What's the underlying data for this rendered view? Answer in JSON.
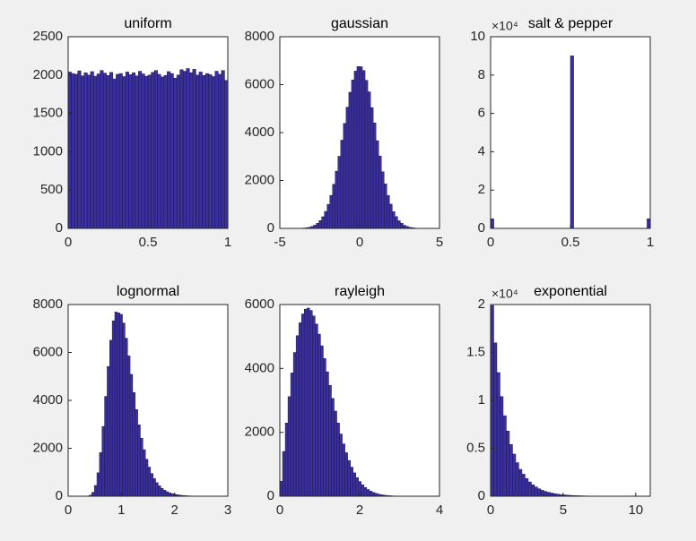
{
  "chart_data": [
    {
      "type": "histogram",
      "title": "uniform",
      "color": "#3b2fa0",
      "edge_color": "#1a1a40",
      "bins": [
        0,
        0.02,
        0.04,
        0.06,
        0.08,
        0.1,
        0.12,
        0.14,
        0.16,
        0.18,
        0.2,
        0.22,
        0.24,
        0.26,
        0.28,
        0.3,
        0.32,
        0.34,
        0.36,
        0.38,
        0.4,
        0.42,
        0.44,
        0.46,
        0.48,
        0.5,
        0.52,
        0.54,
        0.56,
        0.58,
        0.6,
        0.62,
        0.64,
        0.66,
        0.68,
        0.7,
        0.72,
        0.74,
        0.76,
        0.78,
        0.8,
        0.82,
        0.84,
        0.86,
        0.88,
        0.9,
        0.92,
        0.94,
        0.96,
        0.98,
        1
      ],
      "values": [
        2040,
        2020,
        2010,
        2055,
        1990,
        2030,
        2000,
        2045,
        1985,
        2015,
        2060,
        2025,
        1995,
        2035,
        1950,
        2010,
        2020,
        1980,
        2040,
        2005,
        2030,
        1990,
        2050,
        2015,
        1985,
        2000,
        2035,
        2060,
        2010,
        1975,
        1995,
        2045,
        2020,
        1960,
        2000,
        2070,
        2050,
        2085,
        2030,
        2075,
        2000,
        2040,
        1995,
        2020,
        2005,
        1980,
        2050,
        2010,
        2060,
        1930
      ],
      "xlim": [
        0,
        1
      ],
      "ylim": [
        0,
        2500
      ],
      "xticks": [
        0,
        0.5,
        1
      ],
      "yticks": [
        0,
        500,
        1000,
        1500,
        2000,
        2500
      ]
    },
    {
      "type": "histogram",
      "title": "gaussian",
      "color": "#3b2fa0",
      "edge_color": "#1a1a40",
      "bins": [
        -4.25,
        -4.08,
        -3.91,
        -3.74,
        -3.57,
        -3.4,
        -3.23,
        -3.06,
        -2.89,
        -2.72,
        -2.55,
        -2.38,
        -2.21,
        -2.04,
        -1.87,
        -1.7,
        -1.53,
        -1.36,
        -1.19,
        -1.02,
        -0.85,
        -0.68,
        -0.51,
        -0.34,
        -0.17,
        0,
        0.17,
        0.34,
        0.51,
        0.68,
        0.85,
        1.02,
        1.19,
        1.36,
        1.53,
        1.7,
        1.87,
        2.04,
        2.21,
        2.38,
        2.55,
        2.72,
        2.89,
        3.06,
        3.23,
        3.4,
        3.57,
        3.74,
        3.91,
        4.08,
        4.25
      ],
      "values": [
        1,
        2,
        5,
        9,
        16,
        28,
        48,
        81,
        133,
        211,
        325,
        487,
        709,
        1003,
        1379,
        1841,
        2387,
        3009,
        3683,
        4380,
        5061,
        5682,
        6196,
        6565,
        6757,
        6748,
        6590,
        6180,
        5701,
        5043,
        4402,
        3661,
        3021,
        2365,
        1858,
        1371,
        1012,
        698,
        492,
        318,
        215,
        129,
        84,
        45,
        30,
        14,
        8,
        4,
        3,
        1
      ],
      "xlim": [
        -5,
        5
      ],
      "ylim": [
        0,
        8000
      ],
      "xticks": [
        -5,
        0,
        5
      ],
      "yticks": [
        0,
        2000,
        4000,
        6000,
        8000
      ]
    },
    {
      "type": "histogram",
      "title": "salt & pepper",
      "color": "#3b2fa0",
      "edge_color": "#1a1a40",
      "y_multiplier": "×10⁴",
      "bins": [
        0,
        0.02,
        0.04,
        0.06,
        0.08,
        0.1,
        0.12,
        0.14,
        0.16,
        0.18,
        0.2,
        0.22,
        0.24,
        0.26,
        0.28,
        0.3,
        0.32,
        0.34,
        0.36,
        0.38,
        0.4,
        0.42,
        0.44,
        0.46,
        0.48,
        0.5,
        0.52,
        0.54,
        0.56,
        0.58,
        0.6,
        0.62,
        0.64,
        0.66,
        0.68,
        0.7,
        0.72,
        0.74,
        0.76,
        0.78,
        0.8,
        0.82,
        0.84,
        0.86,
        0.88,
        0.9,
        0.92,
        0.94,
        0.96,
        0.98,
        1
      ],
      "values": [
        0.5,
        0,
        0,
        0,
        0,
        0,
        0,
        0,
        0,
        0,
        0,
        0,
        0,
        0,
        0,
        0,
        0,
        0,
        0,
        0,
        0,
        0,
        0,
        0,
        0,
        9,
        0,
        0,
        0,
        0,
        0,
        0,
        0,
        0,
        0,
        0,
        0,
        0,
        0,
        0,
        0,
        0,
        0,
        0,
        0,
        0,
        0,
        0,
        0,
        0.5
      ],
      "xlim": [
        0,
        1
      ],
      "ylim": [
        0,
        10
      ],
      "xticks": [
        0,
        0.5,
        1
      ],
      "yticks": [
        0,
        2,
        4,
        6,
        8,
        10
      ]
    },
    {
      "type": "histogram",
      "title": "lognormal",
      "color": "#3b2fa0",
      "edge_color": "#1a1a40",
      "bins": [
        0.3,
        0.348,
        0.396,
        0.444,
        0.492,
        0.54,
        0.588,
        0.636,
        0.684,
        0.732,
        0.78,
        0.828,
        0.876,
        0.924,
        0.972,
        1.02,
        1.068,
        1.116,
        1.164,
        1.212,
        1.26,
        1.308,
        1.356,
        1.404,
        1.452,
        1.5,
        1.548,
        1.596,
        1.644,
        1.692,
        1.74,
        1.788,
        1.836,
        1.884,
        1.932,
        1.98,
        2.028,
        2.076,
        2.124,
        2.172,
        2.22,
        2.268,
        2.316,
        2.364,
        2.412,
        2.46,
        2.508,
        2.556,
        2.604,
        2.652,
        2.7
      ],
      "values": [
        1,
        8,
        44,
        163,
        448,
        979,
        1819,
        2911,
        4166,
        5416,
        6508,
        7321,
        7687,
        7650,
        7590,
        7229,
        6594,
        5856,
        5085,
        4326,
        3619,
        2979,
        2421,
        1942,
        1543,
        1215,
        948,
        735,
        566,
        433,
        330,
        250,
        189,
        142,
        107,
        80,
        60,
        45,
        33,
        25,
        18,
        14,
        10,
        7,
        5,
        4,
        3,
        2,
        1,
        1
      ],
      "xlim": [
        0,
        3
      ],
      "ylim": [
        0,
        8000
      ],
      "xticks": [
        0,
        1,
        2,
        3
      ],
      "yticks": [
        0,
        2000,
        4000,
        6000,
        8000
      ]
    },
    {
      "type": "histogram",
      "title": "rayleigh",
      "color": "#3b2fa0",
      "edge_color": "#1a1a40",
      "bins": [
        0,
        0.068,
        0.136,
        0.204,
        0.272,
        0.34,
        0.408,
        0.476,
        0.544,
        0.612,
        0.68,
        0.748,
        0.816,
        0.884,
        0.952,
        1.02,
        1.088,
        1.156,
        1.224,
        1.292,
        1.36,
        1.428,
        1.496,
        1.564,
        1.632,
        1.7,
        1.768,
        1.836,
        1.904,
        1.972,
        2.04,
        2.108,
        2.176,
        2.244,
        2.312,
        2.38,
        2.448,
        2.516,
        2.584,
        2.652,
        2.72,
        2.788,
        2.856,
        2.924,
        2.992,
        3.06,
        3.128,
        3.196,
        3.264,
        3.332,
        3.4
      ],
      "values": [
        471,
        1401,
        2291,
        3117,
        3860,
        4500,
        5026,
        5428,
        5705,
        5857,
        5890,
        5815,
        5643,
        5391,
        5074,
        4709,
        4310,
        3893,
        3472,
        3060,
        2664,
        2291,
        1947,
        1637,
        1362,
        1119,
        910,
        732,
        583,
        459,
        357,
        276,
        210,
        158,
        118,
        88,
        64,
        46,
        33,
        24,
        16,
        11,
        8,
        5,
        4,
        2,
        2,
        1,
        1,
        1
      ],
      "xlim": [
        0,
        4
      ],
      "ylim": [
        0,
        6000
      ],
      "xticks": [
        0,
        2,
        4
      ],
      "yticks": [
        0,
        2000,
        4000,
        6000
      ]
    },
    {
      "type": "histogram",
      "title": "exponential",
      "color": "#3b2fa0",
      "edge_color": "#1a1a40",
      "y_multiplier": "×10⁴",
      "bins": [
        0,
        0.216,
        0.432,
        0.648,
        0.864,
        1.08,
        1.296,
        1.512,
        1.728,
        1.944,
        2.16,
        2.376,
        2.592,
        2.808,
        3.024,
        3.24,
        3.456,
        3.672,
        3.888,
        4.104,
        4.32,
        4.536,
        4.752,
        4.968,
        5.184,
        5.4,
        5.616,
        5.832,
        6.048,
        6.264,
        6.48,
        6.696,
        6.912,
        7.128,
        7.344,
        7.56,
        7.776,
        7.992,
        8.208,
        8.424,
        8.64,
        8.856,
        9.072,
        9.288,
        9.504,
        9.72,
        9.936,
        10.152,
        10.368,
        10.584,
        10.8
      ],
      "values": [
        1.99,
        1.6,
        1.29,
        1.04,
        0.84,
        0.68,
        0.54,
        0.44,
        0.35,
        0.28,
        0.23,
        0.185,
        0.149,
        0.12,
        0.097,
        0.078,
        0.062,
        0.05,
        0.041,
        0.033,
        0.027,
        0.021,
        0.017,
        0.014,
        0.011,
        0.009,
        0.007,
        0.006,
        0.005,
        0.004,
        0.003,
        0.0025,
        0.002,
        0.0015,
        0.0012,
        0.001,
        0.0008,
        0.0007,
        0.0005,
        0.0004,
        0.0003,
        0.0003,
        0.0002,
        0.0002,
        0.0001,
        0.0001,
        0.0001,
        0.0001,
        0,
        0.0001
      ],
      "xlim": [
        0,
        11
      ],
      "ylim": [
        0,
        2
      ],
      "xticks": [
        0,
        5,
        10
      ],
      "yticks": [
        0,
        0.5,
        1,
        1.5,
        2
      ]
    }
  ]
}
